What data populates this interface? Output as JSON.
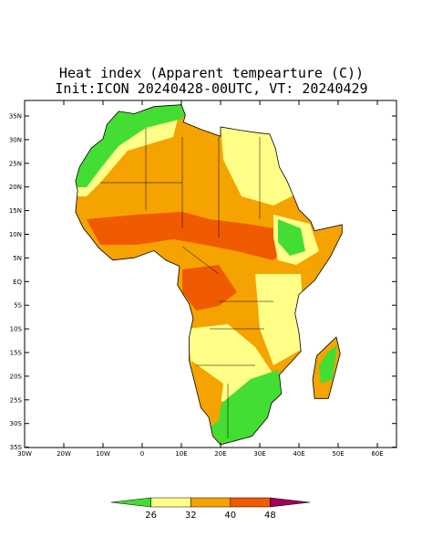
{
  "header": {
    "title": "Heat index (Apparent tempearture (C))",
    "subtitle": "Init:ICON 20240428-00UTC, VT: 20240429"
  },
  "map": {
    "lat_labels": [
      "35N",
      "30N",
      "25N",
      "20N",
      "15N",
      "10N",
      "5N",
      "EQ",
      "5S",
      "10S",
      "15S",
      "20S",
      "25S",
      "30S",
      "35S"
    ],
    "lon_labels": [
      "30W",
      "20W",
      "10W",
      "0",
      "10E",
      "20E",
      "30E",
      "40E",
      "50E",
      "60E"
    ]
  },
  "colorbar": {
    "labels": [
      "26",
      "32",
      "40",
      "48"
    ],
    "colors": [
      "#44dd33",
      "#ffff88",
      "#f5a300",
      "#f05a00",
      "#a0005a"
    ]
  }
}
